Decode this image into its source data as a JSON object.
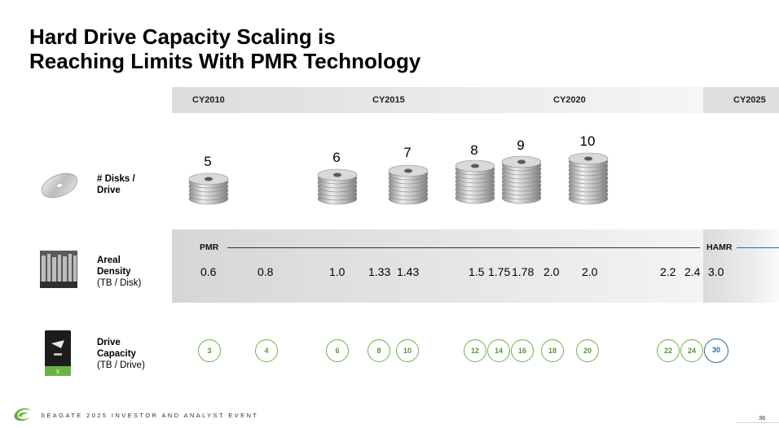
{
  "title": {
    "line1": "Hard Drive Capacity Scaling is",
    "line2": "Reaching Limits With PMR Technology"
  },
  "years": [
    "CY2010",
    "CY2015",
    "CY2020",
    "CY2025"
  ],
  "rows": {
    "disks": {
      "label": "# Disks /",
      "label2": "Drive"
    },
    "density": {
      "label": "Areal",
      "label2": "Density",
      "sub": "(TB / Disk)"
    },
    "capacity": {
      "label": "Drive",
      "label2": "Capacity",
      "sub": "(TB / Drive)"
    }
  },
  "disk_counts": [
    "5",
    "6",
    "7",
    "8",
    "9",
    "10"
  ],
  "tech": {
    "pmr": "PMR",
    "hamr": "HAMR"
  },
  "densities": [
    "0.6",
    "0.8",
    "1.0",
    "1.33",
    "1.43",
    "1.5",
    "1.75",
    "1.78",
    "2.0",
    "2.0",
    "2.2",
    "2.4",
    "3.0"
  ],
  "capacities": [
    "3",
    "4",
    "6",
    "8",
    "10",
    "12",
    "14",
    "16",
    "18",
    "20",
    "22",
    "24",
    "30"
  ],
  "colors": {
    "pmr_accent": "#6bb246",
    "hamr_accent": "#2b6a9a"
  },
  "footer": {
    "event": "SEAGATE 2025 INVESTOR AND ANALYST EVENT",
    "page": "36"
  },
  "icons": {
    "disk": "disk-platter-icon",
    "density": "areal-density-icon",
    "drive": "hard-drive-icon",
    "logo": "seagate-logo-icon"
  }
}
